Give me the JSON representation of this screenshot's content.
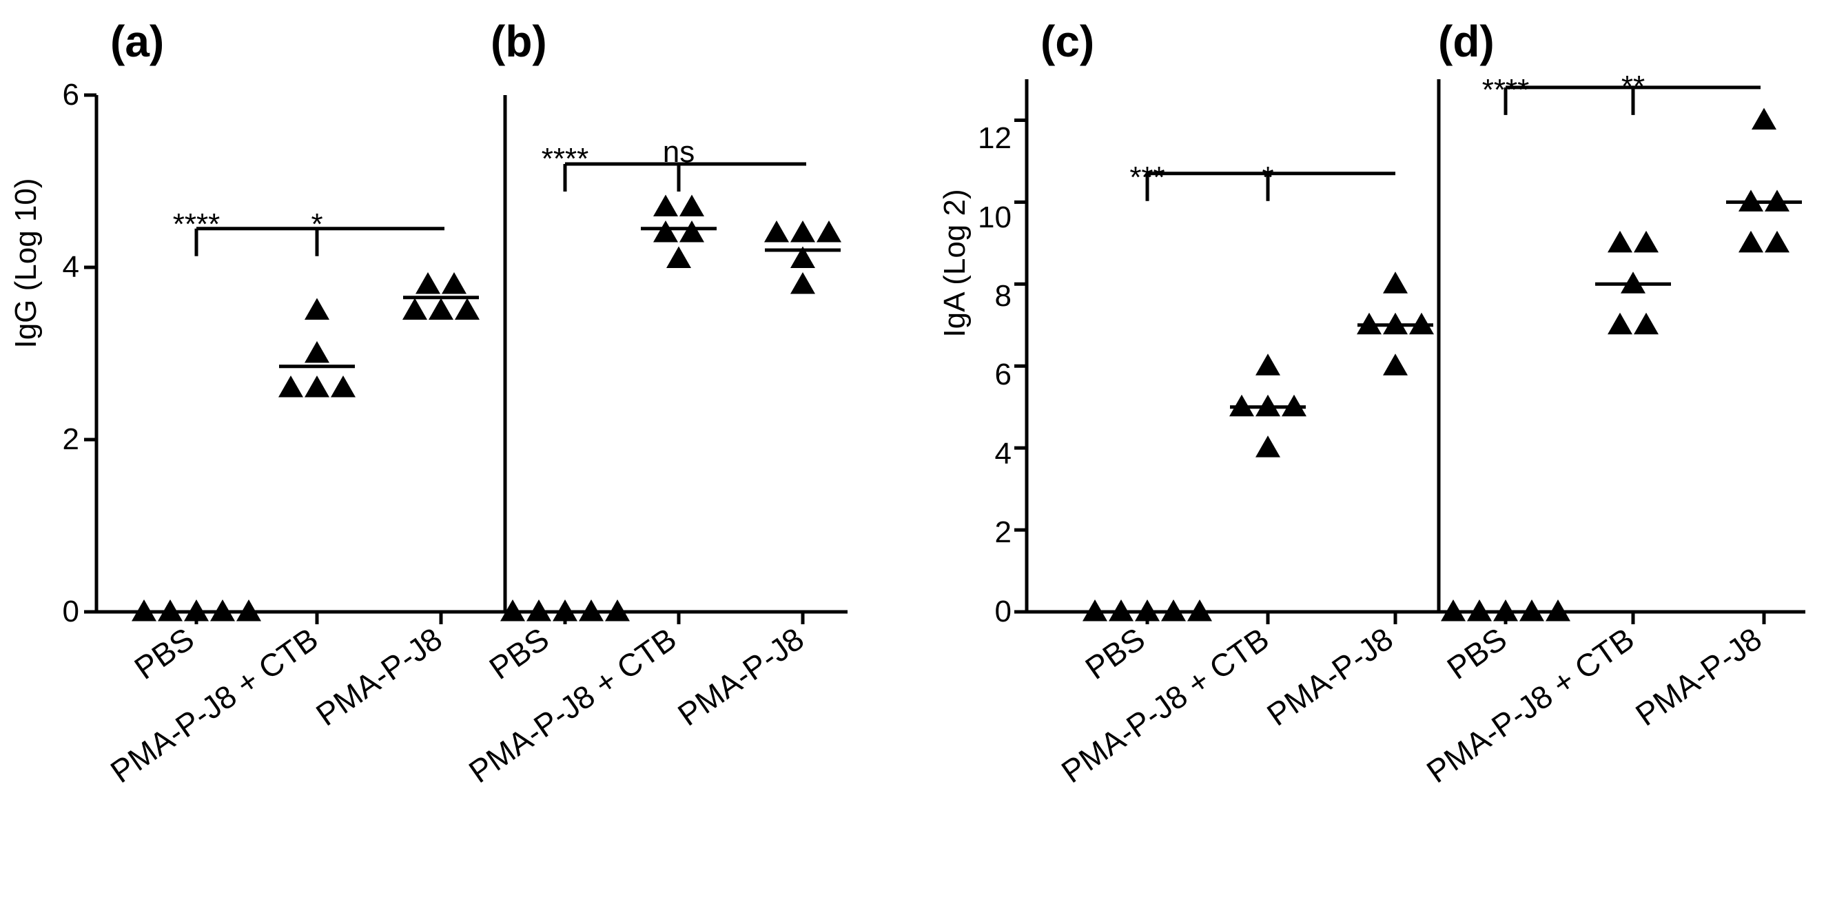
{
  "figure": {
    "colors": {
      "ink": "#000000",
      "background": "#ffffff"
    }
  },
  "chart_data": [
    {
      "type": "scatter",
      "panel": "(a)",
      "ylabel": "IgG (Log 10)",
      "ylim": [
        0,
        6
      ],
      "yticks": [
        "0",
        "2",
        "4",
        "6"
      ],
      "categories": [
        "PBS",
        "PMA-P-J8 + CTB",
        "PMA-P-J8"
      ],
      "points": [
        [
          0,
          0,
          0,
          0,
          0
        ],
        [
          2.6,
          2.6,
          2.6,
          3.0,
          3.5
        ],
        [
          3.5,
          3.5,
          3.5,
          3.8,
          3.8
        ]
      ],
      "medians": [
        0,
        2.85,
        3.65
      ],
      "significance": {
        "bracket_y": 4.45,
        "labels": [
          "****",
          "*"
        ]
      }
    },
    {
      "type": "scatter",
      "panel": "(b)",
      "ylabel": "",
      "ylim": [
        0,
        6
      ],
      "categories": [
        "PBS",
        "PMA-P-J8 + CTB",
        "PMA-P-J8"
      ],
      "points": [
        [
          0,
          0,
          0,
          0,
          0
        ],
        [
          4.1,
          4.4,
          4.4,
          4.7,
          4.7
        ],
        [
          3.8,
          4.1,
          4.4,
          4.4,
          4.4
        ]
      ],
      "medians": [
        0,
        4.45,
        4.2
      ],
      "significance": {
        "bracket_y": 5.2,
        "labels": [
          "****",
          "ns"
        ]
      }
    },
    {
      "type": "scatter",
      "panel": "(c)",
      "ylabel": "IgA (Log 2)",
      "ylim": [
        0,
        13
      ],
      "yticks": [
        "0",
        "2",
        "4",
        "6",
        "8",
        "10",
        "12"
      ],
      "categories": [
        "PBS",
        "PMA-P-J8 + CTB",
        "PMA-P-J8"
      ],
      "points": [
        [
          0,
          0,
          0,
          0,
          0
        ],
        [
          4,
          5,
          5,
          5,
          6
        ],
        [
          6,
          7,
          7,
          7,
          8
        ]
      ],
      "medians": [
        0,
        5,
        7
      ],
      "significance": {
        "bracket_y": 10.7,
        "labels": [
          "***",
          "*"
        ]
      }
    },
    {
      "type": "scatter",
      "panel": "(d)",
      "ylabel": "",
      "ylim": [
        0,
        13
      ],
      "categories": [
        "PBS",
        "PMA-P-J8 + CTB",
        "PMA-P-J8"
      ],
      "points": [
        [
          0,
          0,
          0,
          0,
          0
        ],
        [
          7,
          7,
          8,
          9,
          9
        ],
        [
          9,
          9,
          10,
          10,
          12
        ]
      ],
      "medians": [
        0,
        8,
        10
      ],
      "significance": {
        "bracket_y": 12.8,
        "labels": [
          "****",
          "**"
        ]
      }
    }
  ]
}
